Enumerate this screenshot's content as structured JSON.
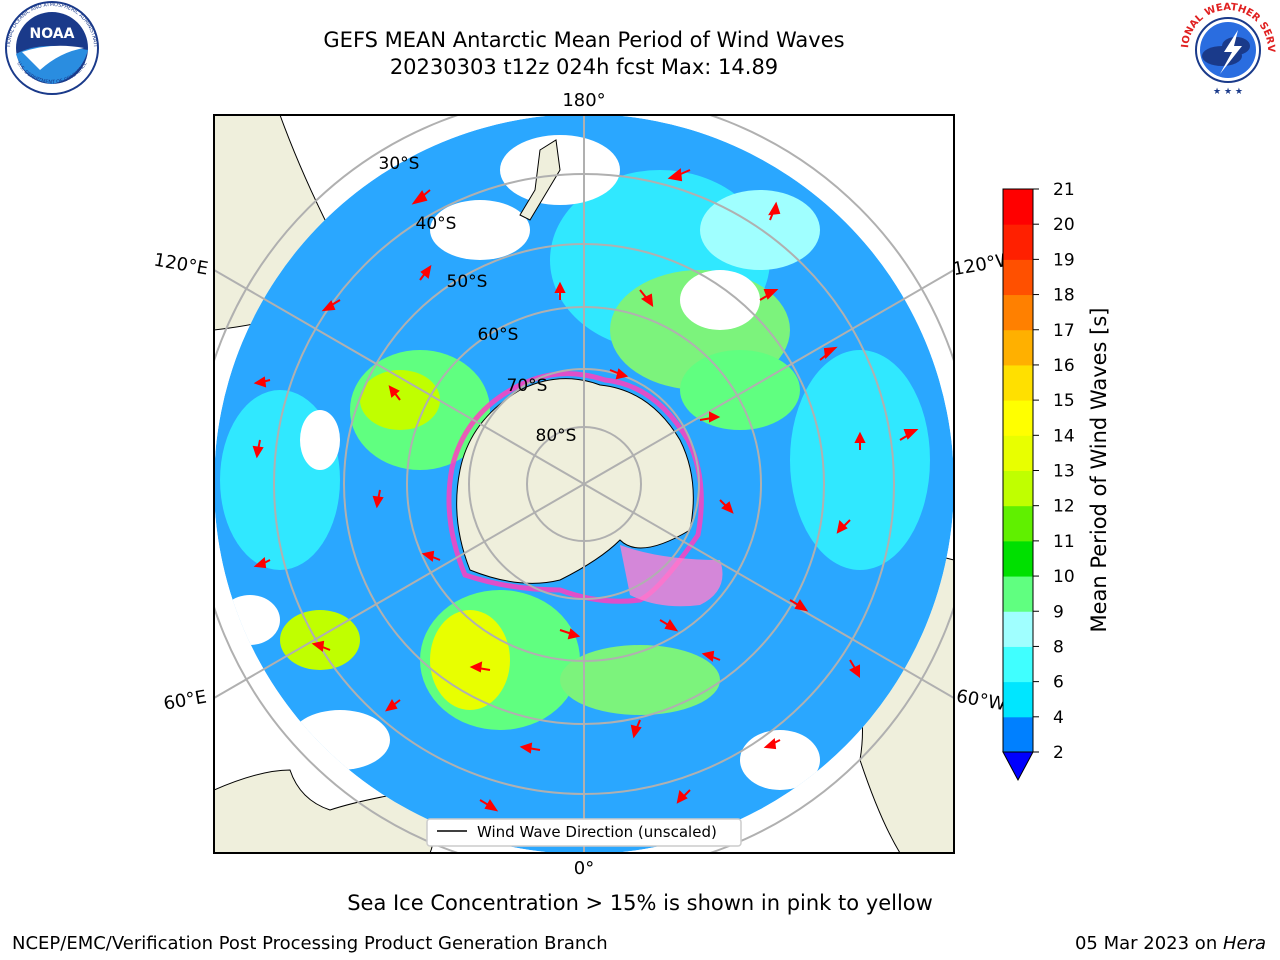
{
  "title": {
    "line1": "GEFS MEAN Antarctic Mean Period of Wind Waves",
    "line2": "20230303 t12z 024h fcst   Max: 14.89"
  },
  "logos": {
    "noaa": "NOAA",
    "noaa_ring": "NATIONAL OCEANIC AND ATMOSPHERIC ADMINISTRATION",
    "noaa_ring_bottom": "U.S. DEPARTMENT OF COMMERCE",
    "nws_ring": "NATIONAL WEATHER SERVICE"
  },
  "map": {
    "projection": "south-polar-stereographic",
    "longitude_labels": {
      "top": "180°",
      "left": "120°E",
      "right": "120°W",
      "bottom_left": "60°E",
      "bottom_right": "60°W",
      "bottom": "0°"
    },
    "latitude_labels": [
      "30°S",
      "40°S",
      "50°S",
      "60°S",
      "70°S",
      "80°S"
    ],
    "legend": "Wind Wave Direction (unscaled)",
    "colors": {
      "land": "#efefdc",
      "grid": "#b0b0b0",
      "arrow": "#ff0000",
      "sea_ice": "#ff40c0"
    }
  },
  "colorbar": {
    "label": "Mean Period of Wind Waves [s]",
    "levels": [
      2,
      4,
      6,
      8,
      9,
      10,
      11,
      12,
      13,
      14,
      15,
      16,
      17,
      18,
      19,
      20,
      21
    ],
    "colors": [
      "#0000ff",
      "#0080ff",
      "#00e6ff",
      "#40ffff",
      "#a0ffff",
      "#60ff80",
      "#00e000",
      "#60f000",
      "#c0ff00",
      "#e8ff00",
      "#ffff00",
      "#ffe000",
      "#ffb000",
      "#ff8000",
      "#ff5000",
      "#ff2000",
      "#ff0000"
    ],
    "extend_color": "#0000ff"
  },
  "subtitle": "Sea Ice Concentration > 15% is shown in pink to yellow",
  "footer": {
    "credit": "NCEP/EMC/Verification Post Processing Product Generation Branch",
    "date": "05 Mar 2023 on ",
    "host": "Hera"
  }
}
